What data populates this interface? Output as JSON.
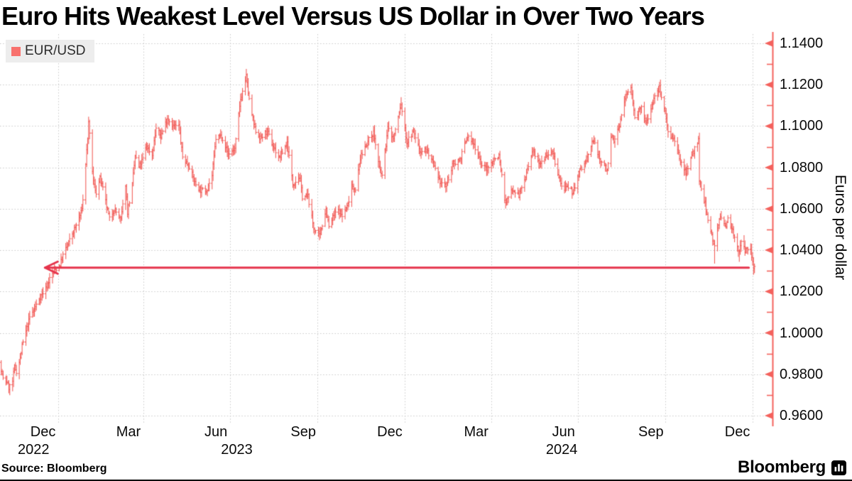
{
  "title": "Euro Hits Weakest Level Versus US Dollar in Over Two Years",
  "legend": {
    "label": "EUR/USD",
    "swatch_color": "#f8716d",
    "background": "#ededed"
  },
  "footer": {
    "source": "Source: Bloomberg"
  },
  "brand": {
    "name": "Bloomberg",
    "icon": "bar-chart-bubble-icon"
  },
  "colors": {
    "price_bar": "#f2605c",
    "axis": "#f4615c",
    "arrow": "#e5344c",
    "grid": "#c9c9c9",
    "text": "#000000",
    "background": "#ffffff"
  },
  "chart_data": {
    "type": "ohlc-bar",
    "title": "Euro Hits Weakest Level Versus US Dollar in Over Two Years",
    "series_name": "EUR/USD",
    "ylabel": "Euros per dollar",
    "grid": "dotted",
    "legend_position": "top-left",
    "x_range": [
      "2022-10-31",
      "2025-01-03"
    ],
    "ylim": [
      0.955,
      1.144
    ],
    "yticks": [
      0.96,
      0.98,
      1.0,
      1.02,
      1.04,
      1.06,
      1.08,
      1.1,
      1.12,
      1.14
    ],
    "ytick_labels": [
      "0.9600",
      "0.9800",
      "1.0000",
      "1.0200",
      "1.0400",
      "1.0600",
      "1.0800",
      "1.1000",
      "1.1200",
      "1.1400"
    ],
    "ytick_minor_step": 0.01,
    "xtick_gridline_dates": [
      "2023-01-01",
      "2023-04-01",
      "2023-07-01",
      "2023-10-01",
      "2024-01-01",
      "2024-04-01",
      "2024-07-01",
      "2024-10-01",
      "2025-01-01"
    ],
    "xtick_month_labels": [
      {
        "label": "Dec",
        "date": "2022-12-16"
      },
      {
        "label": "Mar",
        "date": "2023-03-16"
      },
      {
        "label": "Jun",
        "date": "2023-06-16"
      },
      {
        "label": "Sep",
        "date": "2023-09-16"
      },
      {
        "label": "Dec",
        "date": "2023-12-16"
      },
      {
        "label": "Mar",
        "date": "2024-03-16"
      },
      {
        "label": "Jun",
        "date": "2024-06-16"
      },
      {
        "label": "Sep",
        "date": "2024-09-16"
      },
      {
        "label": "Dec",
        "date": "2024-12-16"
      }
    ],
    "xtick_year_labels": [
      {
        "label": "2022",
        "date": "2022-12-06"
      },
      {
        "label": "2023",
        "date": "2023-07-08"
      },
      {
        "label": "2024",
        "date": "2024-06-14"
      }
    ],
    "annotation_arrow": {
      "value": 1.0317,
      "from_date": "2024-12-28",
      "to_date": "2022-12-18",
      "meaning": "current euro level last seen more than two years earlier"
    },
    "waypoint_format": "[date, close, low?, high?]",
    "waypoints": [
      [
        "2022-10-31",
        0.989
      ],
      [
        "2022-11-02",
        0.9815
      ],
      [
        "2022-11-04",
        0.9775
      ],
      [
        "2022-11-08",
        0.9765
      ],
      [
        "2022-11-10",
        0.9735,
        0.971
      ],
      [
        "2022-11-14",
        0.9765,
        0.9718
      ],
      [
        "2022-11-16",
        0.9835
      ],
      [
        "2022-11-18",
        0.9815
      ],
      [
        "2022-11-22",
        0.9875
      ],
      [
        "2022-11-24",
        0.9935
      ],
      [
        "2022-11-28",
        1.0005
      ],
      [
        "2022-12-02",
        1.0075
      ],
      [
        "2022-12-07",
        1.0115
      ],
      [
        "2022-12-13",
        1.0175
      ],
      [
        "2022-12-19",
        1.0215
      ],
      [
        "2022-12-23",
        1.0262
      ],
      [
        "2022-12-28",
        1.03
      ],
      [
        "2023-01-03",
        1.033
      ],
      [
        "2023-01-06",
        1.0375
      ],
      [
        "2023-01-11",
        1.0425
      ],
      [
        "2023-01-16",
        1.048
      ],
      [
        "2023-01-20",
        1.052
      ],
      [
        "2023-01-25",
        1.058
      ],
      [
        "2023-01-27",
        1.064
      ],
      [
        "2023-01-31",
        1.088
      ],
      [
        "2023-02-02",
        1.101,
        null,
        1.1034
      ],
      [
        "2023-02-07",
        1.073
      ],
      [
        "2023-02-10",
        1.068
      ],
      [
        "2023-02-14",
        1.0745
      ],
      [
        "2023-02-17",
        1.0695
      ],
      [
        "2023-02-24",
        1.055
      ],
      [
        "2023-03-01",
        1.06
      ],
      [
        "2023-03-08",
        1.0545,
        1.0528
      ],
      [
        "2023-03-13",
        1.072
      ],
      [
        "2023-03-15",
        1.0585
      ],
      [
        "2023-03-20",
        1.0715
      ],
      [
        "2023-03-23",
        1.0855
      ],
      [
        "2023-03-27",
        1.08
      ],
      [
        "2023-03-31",
        1.084
      ],
      [
        "2023-04-04",
        1.0905
      ],
      [
        "2023-04-10",
        1.086
      ],
      [
        "2023-04-14",
        1.099
      ],
      [
        "2023-04-19",
        1.095
      ],
      [
        "2023-04-26",
        1.104
      ],
      [
        "2023-05-02",
        1.1
      ],
      [
        "2023-05-08",
        1.1
      ],
      [
        "2023-05-12",
        1.085
      ],
      [
        "2023-05-19",
        1.0805
      ],
      [
        "2023-05-25",
        1.0725
      ],
      [
        "2023-05-31",
        1.069
      ],
      [
        "2023-06-06",
        1.069
      ],
      [
        "2023-06-12",
        1.076
      ],
      [
        "2023-06-16",
        1.094
      ],
      [
        "2023-06-22",
        1.0955
      ],
      [
        "2023-06-29",
        1.0865
      ],
      [
        "2023-07-06",
        1.089
      ],
      [
        "2023-07-12",
        1.113
      ],
      [
        "2023-07-18",
        1.124,
        null,
        1.1276
      ],
      [
        "2023-07-21",
        1.1125
      ],
      [
        "2023-07-27",
        1.0985
      ],
      [
        "2023-08-02",
        1.094
      ],
      [
        "2023-08-09",
        1.0975
      ],
      [
        "2023-08-15",
        1.0905
      ],
      [
        "2023-08-22",
        1.0845
      ],
      [
        "2023-08-30",
        1.092
      ],
      [
        "2023-09-05",
        1.072
      ],
      [
        "2023-09-12",
        1.0755
      ],
      [
        "2023-09-15",
        1.066
      ],
      [
        "2023-09-21",
        1.066
      ],
      [
        "2023-09-27",
        1.0505
      ],
      [
        "2023-10-03",
        1.047,
        1.0448
      ],
      [
        "2023-10-10",
        1.06
      ],
      [
        "2023-10-13",
        1.051
      ],
      [
        "2023-10-19",
        1.058
      ],
      [
        "2023-10-24",
        1.059
      ],
      [
        "2023-10-27",
        1.0565
      ],
      [
        "2023-11-02",
        1.062
      ],
      [
        "2023-11-06",
        1.072
      ],
      [
        "2023-11-10",
        1.0685
      ],
      [
        "2023-11-15",
        1.0845
      ],
      [
        "2023-11-21",
        1.091
      ],
      [
        "2023-11-29",
        1.097
      ],
      [
        "2023-12-05",
        1.0795
      ],
      [
        "2023-12-08",
        1.076
      ],
      [
        "2023-12-14",
        1.099
      ],
      [
        "2023-12-20",
        1.094
      ],
      [
        "2023-12-28",
        1.1105,
        null,
        1.114
      ],
      [
        "2024-01-03",
        1.092
      ],
      [
        "2024-01-10",
        1.0975
      ],
      [
        "2024-01-17",
        1.088
      ],
      [
        "2024-01-24",
        1.0885
      ],
      [
        "2024-01-31",
        1.0815
      ],
      [
        "2024-02-05",
        1.074
      ],
      [
        "2024-02-13",
        1.071
      ],
      [
        "2024-02-21",
        1.082
      ],
      [
        "2024-02-28",
        1.084
      ],
      [
        "2024-03-07",
        1.095
      ],
      [
        "2024-03-12",
        1.0925
      ],
      [
        "2024-03-18",
        1.087
      ],
      [
        "2024-03-22",
        1.081
      ],
      [
        "2024-03-28",
        1.079
      ],
      [
        "2024-04-03",
        1.0835
      ],
      [
        "2024-04-09",
        1.086
      ],
      [
        "2024-04-16",
        1.062,
        1.0601
      ],
      [
        "2024-04-23",
        1.07
      ],
      [
        "2024-04-30",
        1.0665
      ],
      [
        "2024-05-07",
        1.0755
      ],
      [
        "2024-05-15",
        1.088
      ],
      [
        "2024-05-22",
        1.0825
      ],
      [
        "2024-05-28",
        1.0855
      ],
      [
        "2024-06-04",
        1.088
      ],
      [
        "2024-06-10",
        1.0765
      ],
      [
        "2024-06-14",
        1.0705
      ],
      [
        "2024-06-21",
        1.0695
      ],
      [
        "2024-06-26",
        1.068
      ],
      [
        "2024-07-03",
        1.0785
      ],
      [
        "2024-07-10",
        1.083
      ],
      [
        "2024-07-17",
        1.0935
      ],
      [
        "2024-07-24",
        1.084
      ],
      [
        "2024-08-01",
        1.079
      ],
      [
        "2024-08-05",
        1.095
      ],
      [
        "2024-08-08",
        1.092
      ],
      [
        "2024-08-14",
        1.101
      ],
      [
        "2024-08-21",
        1.115
      ],
      [
        "2024-08-26",
        1.1185,
        null,
        1.1201
      ],
      [
        "2024-08-30",
        1.105
      ],
      [
        "2024-09-06",
        1.1085
      ],
      [
        "2024-09-11",
        1.101
      ],
      [
        "2024-09-18",
        1.112
      ],
      [
        "2024-09-25",
        1.1185,
        null,
        1.1214
      ],
      [
        "2024-10-01",
        1.107
      ],
      [
        "2024-10-04",
        1.0975
      ],
      [
        "2024-10-10",
        1.0935
      ],
      [
        "2024-10-17",
        1.083
      ],
      [
        "2024-10-23",
        1.078
      ],
      [
        "2024-10-31",
        1.088
      ],
      [
        "2024-11-05",
        1.093
      ],
      [
        "2024-11-06",
        1.073
      ],
      [
        "2024-11-12",
        1.0625
      ],
      [
        "2024-11-15",
        1.054
      ],
      [
        "2024-11-22",
        1.042,
        1.0335
      ],
      [
        "2024-11-27",
        1.056
      ],
      [
        "2024-12-04",
        1.051
      ],
      [
        "2024-12-06",
        1.0565
      ],
      [
        "2024-12-11",
        1.0495
      ],
      [
        "2024-12-18",
        1.039,
        1.0344
      ],
      [
        "2024-12-20",
        1.043
      ],
      [
        "2024-12-24",
        1.04
      ],
      [
        "2024-12-30",
        1.0405
      ],
      [
        "2025-01-02",
        1.031,
        1.029
      ],
      [
        "2025-01-03",
        1.0325
      ]
    ]
  }
}
